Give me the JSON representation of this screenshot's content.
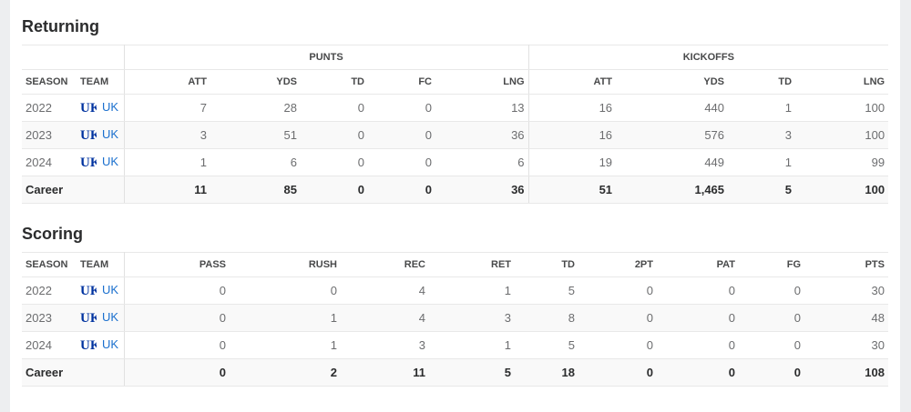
{
  "returning": {
    "title": "Returning",
    "groups": [
      "PUNTS",
      "KICKOFFS"
    ],
    "columns": [
      "SEASON",
      "TEAM",
      "ATT",
      "YDS",
      "TD",
      "FC",
      "LNG",
      "ATT",
      "YDS",
      "TD",
      "LNG"
    ],
    "rows": [
      [
        "2022",
        "UK",
        "7",
        "28",
        "0",
        "0",
        "13",
        "16",
        "440",
        "1",
        "100"
      ],
      [
        "2023",
        "UK",
        "3",
        "51",
        "0",
        "0",
        "36",
        "16",
        "576",
        "3",
        "100"
      ],
      [
        "2024",
        "UK",
        "1",
        "6",
        "0",
        "0",
        "6",
        "19",
        "449",
        "1",
        "99"
      ]
    ],
    "career": [
      "Career",
      "",
      "11",
      "85",
      "0",
      "0",
      "36",
      "51",
      "1,465",
      "5",
      "100"
    ]
  },
  "scoring": {
    "title": "Scoring",
    "columns": [
      "SEASON",
      "TEAM",
      "PASS",
      "RUSH",
      "REC",
      "RET",
      "TD",
      "2PT",
      "PAT",
      "FG",
      "PTS"
    ],
    "rows": [
      [
        "2022",
        "UK",
        "0",
        "0",
        "4",
        "1",
        "5",
        "0",
        "0",
        "0",
        "30"
      ],
      [
        "2023",
        "UK",
        "0",
        "1",
        "4",
        "3",
        "8",
        "0",
        "0",
        "0",
        "48"
      ],
      [
        "2024",
        "UK",
        "0",
        "1",
        "3",
        "1",
        "5",
        "0",
        "0",
        "0",
        "30"
      ]
    ],
    "career": [
      "Career",
      "",
      "0",
      "2",
      "11",
      "5",
      "18",
      "0",
      "0",
      "0",
      "108"
    ]
  },
  "colors": {
    "team_link": "#1a6fce",
    "logo": "#0033a0"
  },
  "team_logo_icon": "kentucky-uk-logo"
}
